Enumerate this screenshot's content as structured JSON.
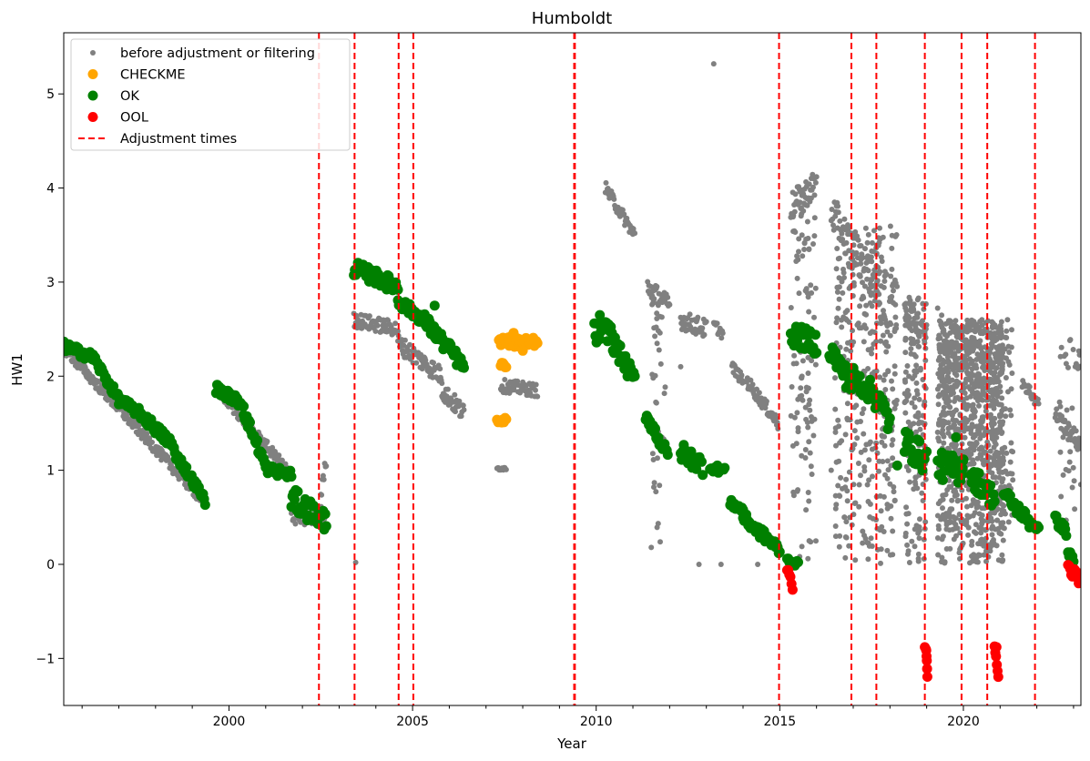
{
  "chart_data": {
    "type": "scatter",
    "title": "Humboldt",
    "xlabel": "Year",
    "ylabel": "HW1",
    "xlim": [
      1995.5,
      2023.2
    ],
    "ylim": [
      -1.5,
      5.65
    ],
    "x_ticks": [
      2000,
      2005,
      2010,
      2015,
      2020
    ],
    "x_tick_labels": [
      "2000",
      "2005",
      "2010",
      "2015",
      "2020"
    ],
    "y_ticks": [
      -1,
      0,
      1,
      2,
      3,
      4,
      5
    ],
    "y_tick_labels": [
      "−1",
      "0",
      "1",
      "2",
      "3",
      "4",
      "5"
    ],
    "grid": false,
    "legend_position": "top-left",
    "legend": [
      {
        "label": "before adjustment or filtering",
        "color": "#808080",
        "marker": "small-dot"
      },
      {
        "label": "CHECKME",
        "color": "#ffa500",
        "marker": "dot"
      },
      {
        "label": "OK",
        "color": "#008000",
        "marker": "dot"
      },
      {
        "label": "OOL",
        "color": "#ff0000",
        "marker": "dot"
      },
      {
        "label": "Adjustment times",
        "color": "#ff0000",
        "marker": "dashed-line"
      }
    ],
    "adjustment_times": [
      2002.45,
      2003.42,
      2004.62,
      2005.02,
      2009.4,
      2009.42,
      2014.98,
      2016.95,
      2017.63,
      2018.95,
      2019.95,
      2020.65,
      2021.95
    ],
    "series": [
      {
        "name": "before adjustment or filtering",
        "color": "#808080",
        "segments": [
          {
            "x0": 1995.5,
            "x1": 1999.35,
            "y0": 2.3,
            "y1": 0.65,
            "spread": 0.06
          },
          {
            "x0": 1999.7,
            "x1": 2001.7,
            "y0": 1.85,
            "y1": 0.95,
            "spread": 0.06
          },
          {
            "x0": 2001.7,
            "x1": 2002.6,
            "y0": 0.55,
            "y1": 0.5,
            "spread": 0.12
          },
          {
            "x0": 2002.5,
            "x1": 2002.65,
            "y0": 0.75,
            "y1": 1.1,
            "spread": 0.08
          },
          {
            "x0": 2003.4,
            "x1": 2004.6,
            "y0": 2.6,
            "y1": 2.5,
            "spread": 0.08
          },
          {
            "x0": 2004.6,
            "x1": 2005.8,
            "y0": 2.35,
            "y1": 2.0,
            "spread": 0.1
          },
          {
            "x0": 2005.8,
            "x1": 2006.4,
            "y0": 1.85,
            "y1": 1.6,
            "spread": 0.1
          },
          {
            "x0": 2007.3,
            "x1": 2007.55,
            "y0": 1.02,
            "y1": 1.02,
            "spread": 0.02
          },
          {
            "x0": 2007.4,
            "x1": 2008.4,
            "y0": 1.9,
            "y1": 1.85,
            "spread": 0.07
          },
          {
            "x0": 2010.25,
            "x1": 2011.05,
            "y0": 4.0,
            "y1": 3.5,
            "spread": 0.07
          },
          {
            "x0": 2011.4,
            "x1": 2012.0,
            "y0": 2.95,
            "y1": 2.75,
            "spread": 0.1
          },
          {
            "x0": 2012.3,
            "x1": 2013.0,
            "y0": 2.6,
            "y1": 2.5,
            "spread": 0.1
          },
          {
            "x0": 2013.2,
            "x1": 2013.45,
            "y0": 2.55,
            "y1": 2.45,
            "spread": 0.06
          },
          {
            "x0": 2013.7,
            "x1": 2014.0,
            "y0": 2.1,
            "y1": 1.95,
            "spread": 0.06
          },
          {
            "x0": 2014.1,
            "x1": 2014.95,
            "y0": 1.95,
            "y1": 1.5,
            "spread": 0.07
          },
          {
            "x0": 2015.3,
            "x1": 2016.0,
            "y0": 3.8,
            "y1": 4.05,
            "spread": 0.15
          },
          {
            "x0": 2016.4,
            "x1": 2017.7,
            "y0": 3.75,
            "y1": 2.9,
            "spread": 0.2
          },
          {
            "x0": 2017.7,
            "x1": 2017.95,
            "y0": 2.8,
            "y1": 2.3,
            "spread": 0.15
          },
          {
            "x0": 2018.4,
            "x1": 2019.0,
            "y0": 2.7,
            "y1": 2.5,
            "spread": 0.15
          },
          {
            "x0": 2019.3,
            "x1": 2021.0,
            "y0": 2.5,
            "y1": 1.9,
            "spread": 0.25
          },
          {
            "x0": 2021.6,
            "x1": 2022.05,
            "y0": 1.95,
            "y1": 1.7,
            "spread": 0.07
          },
          {
            "x0": 2022.5,
            "x1": 2023.2,
            "y0": 1.6,
            "y1": 1.25,
            "spread": 0.08
          }
        ],
        "vertical_scatter": [
          {
            "x0": 2015.3,
            "x1": 2016.0,
            "y0": 0.0,
            "y1": 3.9,
            "count": 110
          },
          {
            "x0": 2016.5,
            "x1": 2018.2,
            "y0": 0.0,
            "y1": 3.6,
            "count": 360
          },
          {
            "x0": 2018.4,
            "x1": 2019.0,
            "y0": 0.0,
            "y1": 2.9,
            "count": 160
          },
          {
            "x0": 2019.3,
            "x1": 2021.1,
            "y0": 0.0,
            "y1": 2.6,
            "count": 900
          },
          {
            "x0": 2021.1,
            "x1": 2021.35,
            "y0": 0.3,
            "y1": 2.5,
            "count": 40
          },
          {
            "x0": 2011.5,
            "x1": 2011.9,
            "y0": 0.2,
            "y1": 2.9,
            "count": 40
          },
          {
            "x0": 2022.6,
            "x1": 2023.2,
            "y0": 0.3,
            "y1": 2.4,
            "count": 40
          }
        ],
        "points": [
          [
            2013.2,
            5.32
          ],
          [
            2003.45,
            0.02
          ],
          [
            2012.8,
            0.0
          ],
          [
            2013.4,
            0.0
          ],
          [
            2014.4,
            0.0
          ],
          [
            2015.8,
            0.25
          ],
          [
            2016.4,
            1.0
          ],
          [
            2011.5,
            0.18
          ],
          [
            2022.9,
            2.38
          ],
          [
            2021.2,
            2.6
          ],
          [
            2012.3,
            2.1
          ],
          [
            2015.5,
            1.45
          ]
        ]
      },
      {
        "name": "CHECKME",
        "color": "#ffa500",
        "segments": [
          {
            "x0": 2007.3,
            "x1": 2007.55,
            "y0": 1.53,
            "y1": 1.53,
            "spread": 0.03
          },
          {
            "x0": 2007.4,
            "x1": 2007.55,
            "y0": 2.12,
            "y1": 2.12,
            "spread": 0.03
          },
          {
            "x0": 2007.35,
            "x1": 2008.4,
            "y0": 2.38,
            "y1": 2.35,
            "spread": 0.06
          }
        ],
        "points": [
          [
            2007.75,
            2.46
          ],
          [
            2008.0,
            2.27
          ]
        ]
      },
      {
        "name": "OK",
        "color": "#008000",
        "segments": [
          {
            "x0": 1995.5,
            "x1": 1996.3,
            "y0": 2.32,
            "y1": 2.2,
            "spread": 0.05
          },
          {
            "x0": 1996.3,
            "x1": 1997.0,
            "y0": 2.2,
            "y1": 1.75,
            "spread": 0.05
          },
          {
            "x0": 1997.0,
            "x1": 1997.6,
            "y0": 1.75,
            "y1": 1.6,
            "spread": 0.05
          },
          {
            "x0": 1997.6,
            "x1": 1998.5,
            "y0": 1.6,
            "y1": 1.25,
            "spread": 0.06
          },
          {
            "x0": 1998.0,
            "x1": 1998.3,
            "y0": 1.45,
            "y1": 1.35,
            "spread": 0.04
          },
          {
            "x0": 1998.5,
            "x1": 1999.35,
            "y0": 1.2,
            "y1": 0.68,
            "spread": 0.05
          },
          {
            "x0": 1999.65,
            "x1": 2000.4,
            "y0": 1.87,
            "y1": 1.7,
            "spread": 0.05
          },
          {
            "x0": 2000.4,
            "x1": 2001.0,
            "y0": 1.62,
            "y1": 1.05,
            "spread": 0.06
          },
          {
            "x0": 2001.0,
            "x1": 2001.7,
            "y0": 1.02,
            "y1": 0.95,
            "spread": 0.05
          },
          {
            "x0": 2001.7,
            "x1": 2002.65,
            "y0": 0.7,
            "y1": 0.45,
            "spread": 0.12
          },
          {
            "x0": 2003.4,
            "x1": 2004.6,
            "y0": 3.15,
            "y1": 2.95,
            "spread": 0.08
          },
          {
            "x0": 2004.6,
            "x1": 2005.3,
            "y0": 2.8,
            "y1": 2.6,
            "spread": 0.06
          },
          {
            "x0": 2005.3,
            "x1": 2006.4,
            "y0": 2.6,
            "y1": 2.1,
            "spread": 0.08
          },
          {
            "x0": 2009.95,
            "x1": 2010.4,
            "y0": 2.45,
            "y1": 2.5,
            "spread": 0.12
          },
          {
            "x0": 2010.4,
            "x1": 2011.05,
            "y0": 2.4,
            "y1": 1.95,
            "spread": 0.1
          },
          {
            "x0": 2011.35,
            "x1": 2011.95,
            "y0": 1.6,
            "y1": 1.15,
            "spread": 0.07
          },
          {
            "x0": 2012.3,
            "x1": 2012.9,
            "y0": 1.2,
            "y1": 1.05,
            "spread": 0.1
          },
          {
            "x0": 2013.1,
            "x1": 2013.5,
            "y0": 1.03,
            "y1": 1.0,
            "spread": 0.04
          },
          {
            "x0": 2013.65,
            "x1": 2014.0,
            "y0": 0.65,
            "y1": 0.58,
            "spread": 0.04
          },
          {
            "x0": 2014.0,
            "x1": 2015.0,
            "y0": 0.5,
            "y1": 0.15,
            "spread": 0.06
          },
          {
            "x0": 2015.2,
            "x1": 2015.5,
            "y0": 0.05,
            "y1": 0.0,
            "spread": 0.03
          },
          {
            "x0": 2015.3,
            "x1": 2016.0,
            "y0": 2.45,
            "y1": 2.35,
            "spread": 0.12
          },
          {
            "x0": 2016.35,
            "x1": 2016.95,
            "y0": 2.3,
            "y1": 1.9,
            "spread": 0.12
          },
          {
            "x0": 2016.95,
            "x1": 2017.6,
            "y0": 2.0,
            "y1": 1.8,
            "spread": 0.12
          },
          {
            "x0": 2017.6,
            "x1": 2018.0,
            "y0": 1.8,
            "y1": 1.5,
            "spread": 0.15
          },
          {
            "x0": 2018.4,
            "x1": 2019.0,
            "y0": 1.3,
            "y1": 1.1,
            "spread": 0.15
          },
          {
            "x0": 2019.95,
            "x1": 2020.0,
            "y0": 1.05,
            "y1": 1.05,
            "spread": 0.1
          },
          {
            "x0": 2019.3,
            "x1": 2019.95,
            "y0": 1.05,
            "y1": 1.0,
            "spread": 0.15
          },
          {
            "x0": 2020.2,
            "x1": 2020.85,
            "y0": 0.95,
            "y1": 0.7,
            "spread": 0.12
          },
          {
            "x0": 2021.1,
            "x1": 2021.8,
            "y0": 0.75,
            "y1": 0.45,
            "spread": 0.07
          },
          {
            "x0": 2021.8,
            "x1": 2022.05,
            "y0": 0.45,
            "y1": 0.38,
            "spread": 0.04
          },
          {
            "x0": 2022.5,
            "x1": 2022.8,
            "y0": 0.48,
            "y1": 0.35,
            "spread": 0.05
          },
          {
            "x0": 2022.85,
            "x1": 2023.0,
            "y0": 0.12,
            "y1": 0.05,
            "spread": 0.04
          }
        ],
        "points": [
          [
            2018.2,
            1.05
          ],
          [
            2019.8,
            1.35
          ],
          [
            2010.1,
            2.65
          ],
          [
            2005.6,
            2.75
          ]
        ]
      },
      {
        "name": "OOL",
        "color": "#ff0000",
        "segments": [
          {
            "x0": 2015.2,
            "x1": 2015.35,
            "y0": -0.05,
            "y1": -0.22,
            "spread": 0.06
          },
          {
            "x0": 2018.98,
            "x1": 2019.02,
            "y0": -0.9,
            "y1": -1.18,
            "spread": 0.05
          },
          {
            "x0": 2020.85,
            "x1": 2020.95,
            "y0": -0.9,
            "y1": -1.18,
            "spread": 0.05
          },
          {
            "x0": 2022.85,
            "x1": 2023.2,
            "y0": -0.05,
            "y1": -0.15,
            "spread": 0.07
          }
        ],
        "points": [
          [
            2018.95,
            -0.88
          ],
          [
            2020.9,
            -0.88
          ]
        ]
      }
    ]
  }
}
